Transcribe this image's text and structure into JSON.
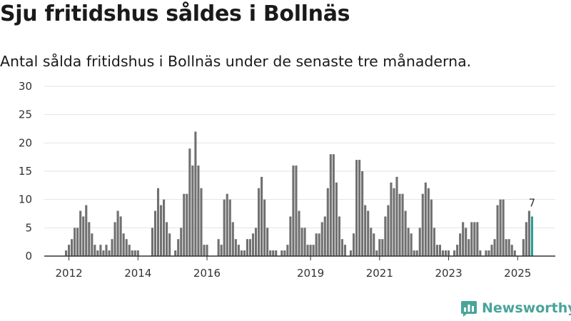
{
  "title": "Sju fritidshus såldes i Bollnäs",
  "subtitle": "Antal sålda fritidshus i Bollnäs under de senaste tre månaderna.",
  "brand": "Newsworthy",
  "colors": {
    "bar": "#707070",
    "highlight": "#2a9a93",
    "brand": "#4aa49b"
  },
  "chart_data": {
    "type": "bar",
    "ylim": [
      0,
      30
    ],
    "yticks": [
      0,
      5,
      10,
      15,
      20,
      25,
      30
    ],
    "grid": true,
    "xticks": [
      "2012",
      "2014",
      "2016",
      "2019",
      "2021",
      "2023",
      "2025"
    ],
    "start_period": "2011-12",
    "values": [
      1,
      2,
      3,
      5,
      5,
      8,
      7,
      9,
      6,
      4,
      2,
      1,
      2,
      1,
      2,
      1,
      3,
      6,
      8,
      7,
      4,
      3,
      2,
      1,
      1,
      1,
      0,
      0,
      0,
      0,
      5,
      8,
      12,
      9,
      10,
      6,
      4,
      0,
      1,
      3,
      5,
      11,
      11,
      19,
      16,
      22,
      16,
      12,
      2,
      2,
      0,
      0,
      0,
      3,
      2,
      10,
      11,
      10,
      6,
      3,
      2,
      1,
      1,
      3,
      3,
      4,
      5,
      12,
      14,
      10,
      5,
      1,
      1,
      1,
      0,
      1,
      1,
      2,
      7,
      16,
      16,
      8,
      5,
      5,
      2,
      2,
      2,
      4,
      4,
      6,
      7,
      12,
      18,
      18,
      13,
      7,
      3,
      2,
      0,
      1,
      4,
      17,
      17,
      15,
      9,
      8,
      5,
      4,
      1,
      3,
      3,
      7,
      9,
      13,
      12,
      14,
      11,
      11,
      8,
      5,
      4,
      1,
      1,
      5,
      11,
      13,
      12,
      10,
      5,
      2,
      2,
      1,
      1,
      1,
      0,
      1,
      2,
      4,
      6,
      5,
      3,
      6,
      6,
      6,
      1,
      0,
      1,
      1,
      2,
      3,
      9,
      10,
      10,
      3,
      3,
      2,
      1,
      0,
      0,
      3,
      6,
      8,
      7
    ],
    "highlight_last": true,
    "annotation": "7"
  }
}
